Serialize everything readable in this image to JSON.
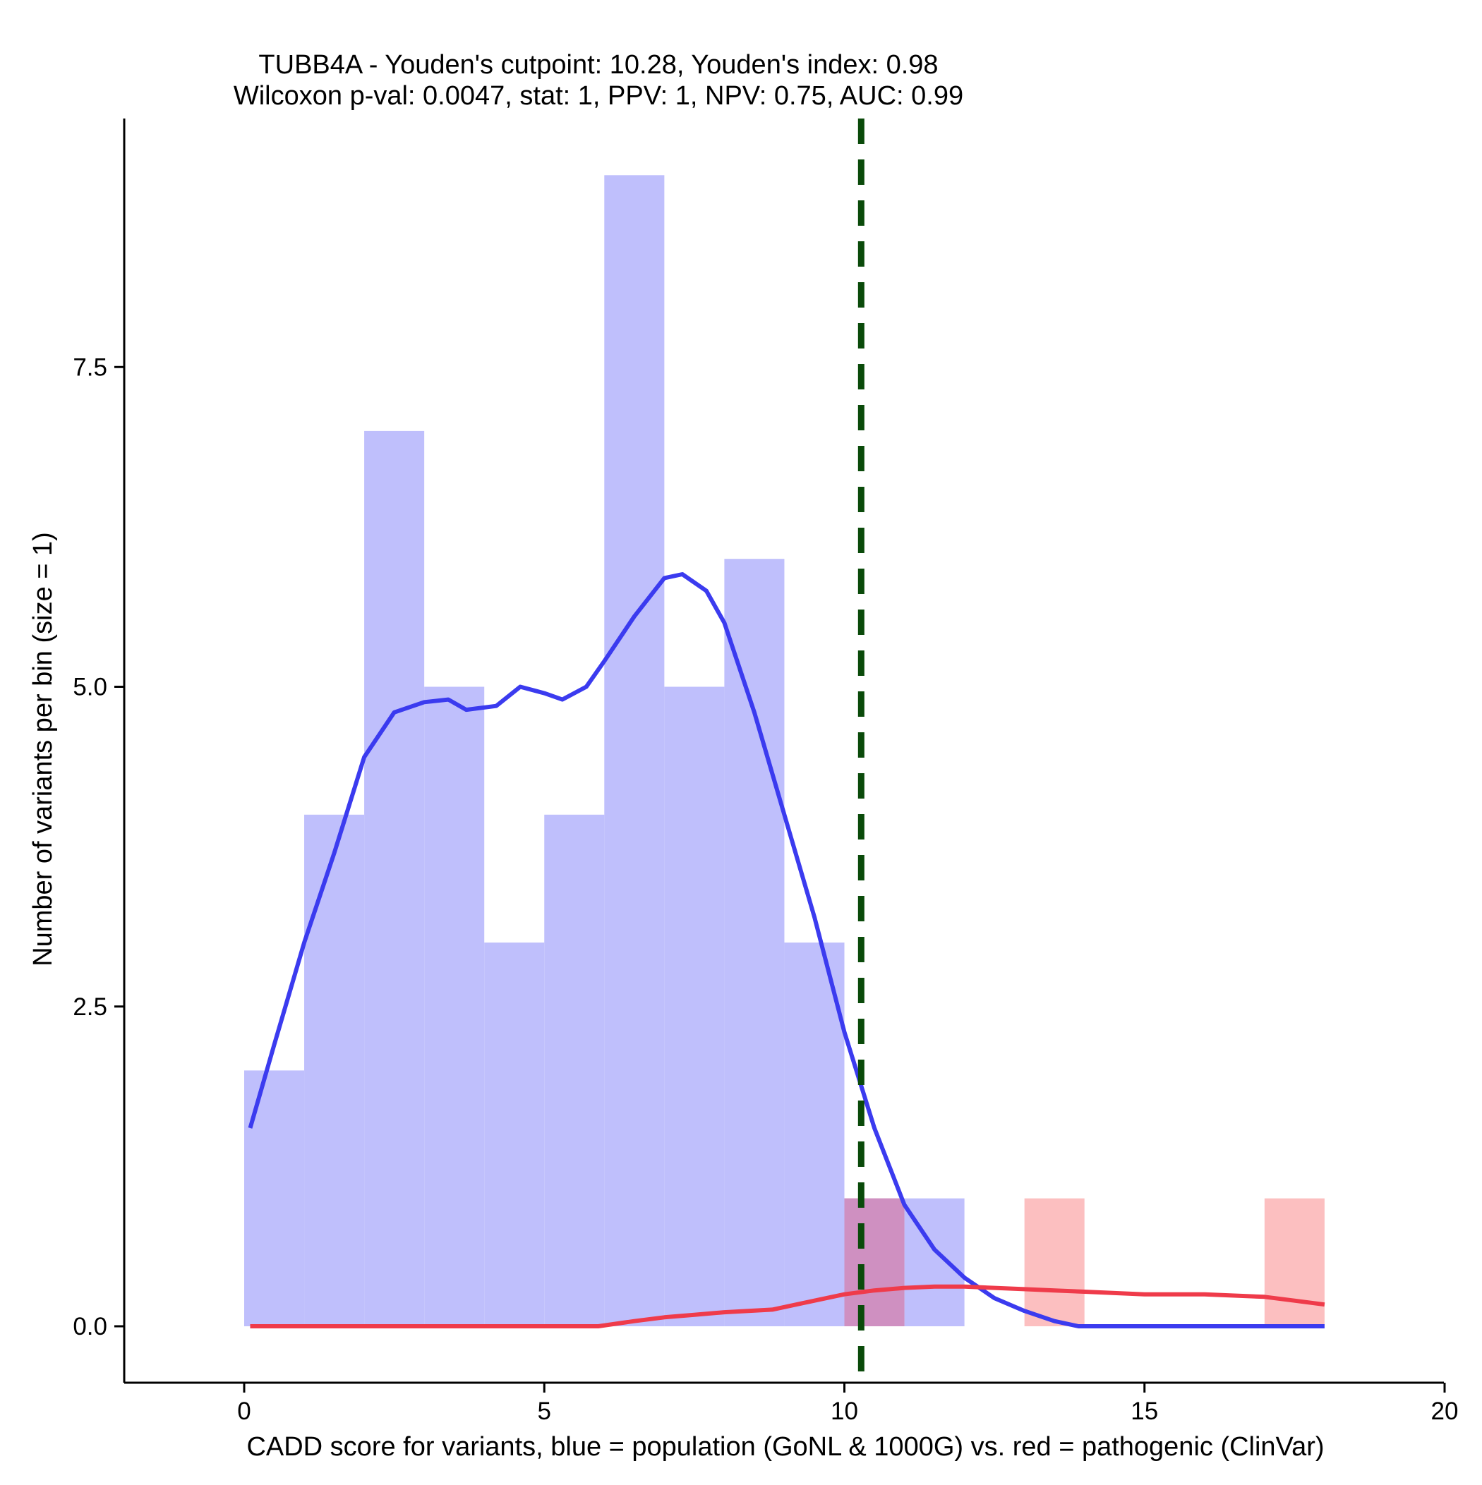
{
  "chart_data": {
    "type": "bar",
    "title_lines": [
      "TUBB4A - Youden's cutpoint: 10.28, Youden's index: 0.98",
      "Wilcoxon p-val: 0.0047, stat: 1, PPV: 1, NPV: 0.75, AUC: 0.99"
    ],
    "xlabel": "CADD score for variants, blue = population (GoNL & 1000G) vs. red = pathogenic (ClinVar)",
    "ylabel": "Number of variants per bin (size = 1)",
    "xlim": [
      -2,
      20
    ],
    "ylim": [
      -0.45,
      9.6
    ],
    "x_ticks": [
      {
        "value": 0,
        "label": "0"
      },
      {
        "value": 5,
        "label": "5"
      },
      {
        "value": 10,
        "label": "10"
      },
      {
        "value": 15,
        "label": "15"
      },
      {
        "value": 20,
        "label": "20"
      }
    ],
    "y_ticks": [
      {
        "value": 0,
        "label": "0.0"
      },
      {
        "value": 2.5,
        "label": "2.5"
      },
      {
        "value": 5,
        "label": "5.0"
      },
      {
        "value": 7.5,
        "label": "7.5"
      }
    ],
    "bin_width": 1,
    "series": [
      {
        "color": "#bfbffc",
        "bins": [
          {
            "start": 0,
            "count": 2
          },
          {
            "start": 1,
            "count": 4
          },
          {
            "start": 2,
            "count": 7
          },
          {
            "start": 3,
            "count": 5
          },
          {
            "start": 4,
            "count": 3
          },
          {
            "start": 5,
            "count": 4
          },
          {
            "start": 6,
            "count": 9
          },
          {
            "start": 7,
            "count": 5
          },
          {
            "start": 8,
            "count": 6
          },
          {
            "start": 9,
            "count": 3
          },
          {
            "start": 10,
            "count": 1
          },
          {
            "start": 11,
            "count": 1
          }
        ]
      },
      {
        "color": "#fcbfc0",
        "bins": [
          {
            "start": 10,
            "count": 1
          },
          {
            "start": 13,
            "count": 1
          },
          {
            "start": 17,
            "count": 1
          }
        ]
      }
    ],
    "overlap_color": "#cf90c1",
    "density_lines": [
      {
        "color": "#3b3bef",
        "points": [
          [
            0.1,
            1.55
          ],
          [
            0.5,
            2.2
          ],
          [
            1.0,
            3.0
          ],
          [
            1.5,
            3.7
          ],
          [
            2.0,
            4.45
          ],
          [
            2.5,
            4.8
          ],
          [
            3.0,
            4.88
          ],
          [
            3.4,
            4.9
          ],
          [
            3.7,
            4.82
          ],
          [
            4.2,
            4.85
          ],
          [
            4.6,
            5.0
          ],
          [
            5.0,
            4.95
          ],
          [
            5.3,
            4.9
          ],
          [
            5.7,
            5.0
          ],
          [
            6.0,
            5.2
          ],
          [
            6.5,
            5.55
          ],
          [
            7.0,
            5.85
          ],
          [
            7.3,
            5.88
          ],
          [
            7.7,
            5.75
          ],
          [
            8.0,
            5.5
          ],
          [
            8.5,
            4.8
          ],
          [
            9.0,
            4.0
          ],
          [
            9.5,
            3.2
          ],
          [
            10.0,
            2.3
          ],
          [
            10.5,
            1.55
          ],
          [
            11.0,
            0.95
          ],
          [
            11.5,
            0.6
          ],
          [
            12.0,
            0.38
          ],
          [
            12.5,
            0.22
          ],
          [
            13.0,
            0.12
          ],
          [
            13.5,
            0.04
          ],
          [
            13.9,
            0
          ],
          [
            15.0,
            0
          ],
          [
            16.0,
            0
          ],
          [
            17.0,
            0
          ],
          [
            18.0,
            0
          ]
        ]
      },
      {
        "color": "#ef3b4a",
        "points": [
          [
            0.1,
            0
          ],
          [
            2.0,
            0
          ],
          [
            4.0,
            0
          ],
          [
            5.9,
            0
          ],
          [
            6.5,
            0.04
          ],
          [
            7.0,
            0.07
          ],
          [
            7.5,
            0.09
          ],
          [
            8.0,
            0.11
          ],
          [
            8.8,
            0.13
          ],
          [
            9.5,
            0.2
          ],
          [
            10.0,
            0.25
          ],
          [
            10.5,
            0.28
          ],
          [
            11.0,
            0.3
          ],
          [
            11.5,
            0.31
          ],
          [
            12.0,
            0.31
          ],
          [
            12.5,
            0.3
          ],
          [
            13.0,
            0.29
          ],
          [
            13.5,
            0.28
          ],
          [
            14.0,
            0.27
          ],
          [
            15.0,
            0.25
          ],
          [
            16.0,
            0.25
          ],
          [
            17.0,
            0.23
          ],
          [
            17.5,
            0.2
          ],
          [
            18.0,
            0.17
          ]
        ]
      }
    ],
    "cutpoint": {
      "x": 10.28,
      "color": "#0a4a0a"
    }
  }
}
